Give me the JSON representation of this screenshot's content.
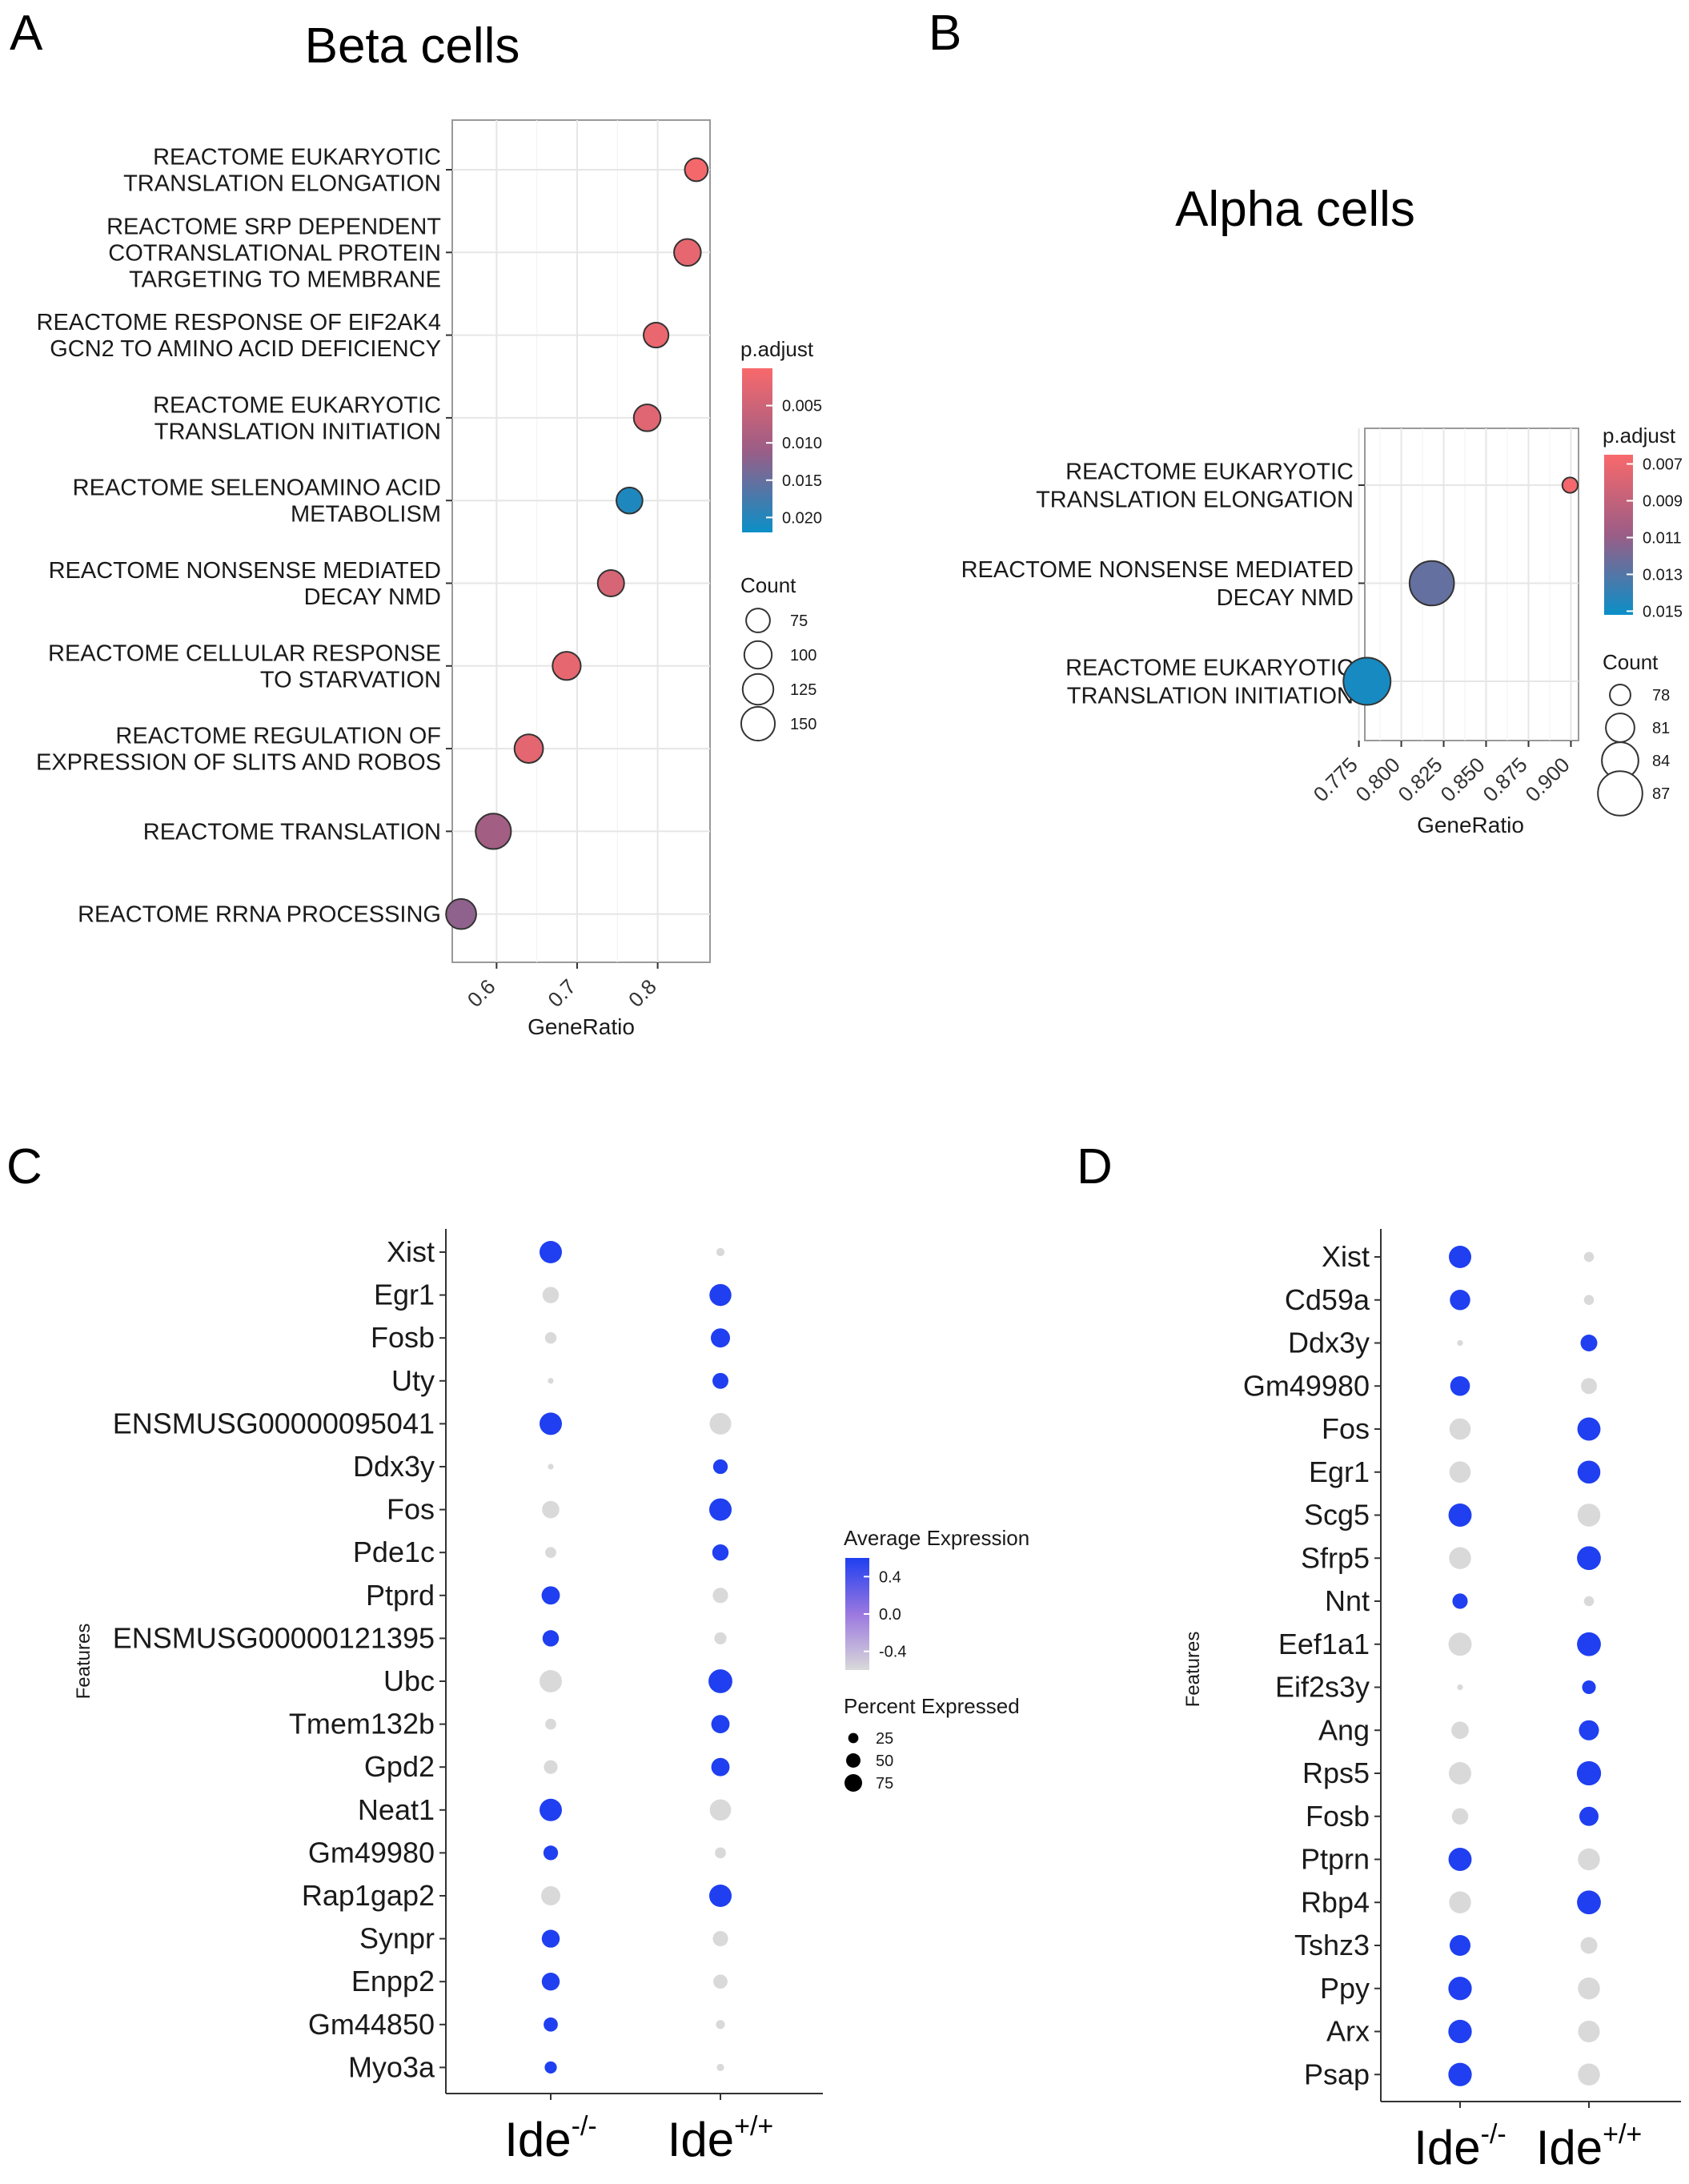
{
  "panels": {
    "A": {
      "label": "A",
      "title": "Beta cells"
    },
    "B": {
      "label": "B",
      "title": "Alpha cells"
    },
    "C": {
      "label": "C"
    },
    "D": {
      "label": "D"
    }
  },
  "chart_data": [
    {
      "panel": "A",
      "type": "scatter",
      "title": "Beta cells",
      "xlabel": "GeneRatio",
      "ylabel": "",
      "xlim": [
        0.545,
        0.865
      ],
      "xticks": [
        0.6,
        0.7,
        0.8
      ],
      "tick_labels": [
        "0.6",
        "0.7",
        "0.8"
      ],
      "grid": true,
      "categories": [
        [
          "REACTOME EUKARYOTIC",
          "TRANSLATION ELONGATION"
        ],
        [
          "REACTOME SRP DEPENDENT",
          "COTRANSLATIONAL PROTEIN",
          "TARGETING TO MEMBRANE"
        ],
        [
          "REACTOME RESPONSE OF EIF2AK4",
          "GCN2 TO AMINO ACID DEFICIENCY"
        ],
        [
          "REACTOME EUKARYOTIC",
          "TRANSLATION INITIATION"
        ],
        [
          "REACTOME SELENOAMINO ACID",
          "METABOLISM"
        ],
        [
          "REACTOME NONSENSE MEDIATED",
          "DECAY NMD"
        ],
        [
          "REACTOME CELLULAR RESPONSE",
          "TO STARVATION"
        ],
        [
          "REACTOME REGULATION OF",
          "EXPRESSION OF SLITS AND ROBOS"
        ],
        [
          "REACTOME TRANSLATION"
        ],
        [
          "REACTOME RRNA PROCESSING"
        ]
      ],
      "gene_ratio": [
        0.848,
        0.837,
        0.798,
        0.787,
        0.765,
        0.742,
        0.687,
        0.64,
        0.596,
        0.556
      ],
      "p_adjust": [
        0.0005,
        0.002,
        0.0015,
        0.003,
        0.0205,
        0.004,
        0.002,
        0.0025,
        0.01,
        0.012
      ],
      "count": [
        70,
        95,
        82,
        95,
        90,
        92,
        105,
        108,
        165,
        120
      ],
      "color_legend": {
        "title": "p.adjust",
        "range": [
          0.0,
          0.022
        ],
        "ticks": [
          "0.005",
          "0.010",
          "0.015",
          "0.020"
        ],
        "tick_values": [
          0.005,
          0.01,
          0.015,
          0.02
        ],
        "low_color": "#f8696b",
        "high_color": "#0a8fc7"
      },
      "size_legend": {
        "title": "Count",
        "values": [
          75,
          100,
          125,
          150
        ],
        "labels": [
          "75",
          "100",
          "125",
          "150"
        ]
      },
      "legend_position": "right"
    },
    {
      "panel": "B",
      "type": "scatter",
      "title": "Alpha cells",
      "xlabel": "GeneRatio",
      "ylabel": "",
      "xlim": [
        0.7785,
        0.9045
      ],
      "xticks": [
        0.775,
        0.8,
        0.825,
        0.85,
        0.875,
        0.9
      ],
      "tick_labels": [
        "0.775",
        "0.800",
        "0.825",
        "0.850",
        "0.875",
        "0.900"
      ],
      "grid": true,
      "categories": [
        [
          "REACTOME EUKARYOTIC",
          "TRANSLATION ELONGATION"
        ],
        [
          "REACTOME NONSENSE MEDIATED",
          "DECAY NMD"
        ],
        [
          "REACTOME EUKARYOTIC",
          "TRANSLATION INITIATION"
        ]
      ],
      "gene_ratio": [
        0.8995,
        0.818,
        0.7798
      ],
      "p_adjust": [
        0.0068,
        0.0125,
        0.0148
      ],
      "count": [
        76,
        87,
        88
      ],
      "color_legend": {
        "title": "p.adjust",
        "range": [
          0.0065,
          0.0152
        ],
        "ticks": [
          "0.007",
          "0.009",
          "0.011",
          "0.013",
          "0.015"
        ],
        "tick_values": [
          0.007,
          0.009,
          0.011,
          0.013,
          0.015
        ],
        "low_color": "#f8696b",
        "high_color": "#0a8fc7"
      },
      "size_legend": {
        "title": "Count",
        "values": [
          78,
          81,
          84,
          87
        ],
        "labels": [
          "78",
          "81",
          "84",
          "87"
        ]
      },
      "legend_position": "right"
    },
    {
      "panel": "C",
      "type": "scatter",
      "ylabel": "Features",
      "groups": [
        {
          "main": "Ide",
          "sup": "-/-"
        },
        {
          "main": "Ide",
          "sup": "+/+"
        }
      ],
      "features": [
        "Xist",
        "Egr1",
        "Fosb",
        "Uty",
        "ENSMUSG00000095041",
        "Ddx3y",
        "Fos",
        "Pde1c",
        "Ptprd",
        "ENSMUSG00000121395",
        "Ubc",
        "Tmem132b",
        "Gpd2",
        "Neat1",
        "Gm49980",
        "Rap1gap2",
        "Synpr",
        "Enpp2",
        "Gm44850",
        "Myo3a"
      ],
      "avg_expression": {
        "ko": [
          0.6,
          -0.6,
          -0.6,
          -0.6,
          0.6,
          -0.6,
          -0.6,
          -0.6,
          0.6,
          0.6,
          -0.6,
          -0.6,
          -0.6,
          0.6,
          0.6,
          -0.6,
          0.6,
          0.6,
          0.6,
          0.6
        ],
        "wt": [
          -0.6,
          0.6,
          0.6,
          0.6,
          -0.6,
          0.6,
          0.6,
          0.6,
          -0.6,
          -0.6,
          0.6,
          0.6,
          0.6,
          -0.6,
          -0.6,
          0.6,
          -0.6,
          -0.6,
          -0.6,
          -0.6
        ]
      },
      "pct_expressed": {
        "ko": [
          75,
          40,
          20,
          5,
          75,
          5,
          45,
          18,
          50,
          40,
          75,
          18,
          28,
          75,
          32,
          55,
          48,
          48,
          30,
          22
        ],
        "wt": [
          10,
          72,
          55,
          38,
          70,
          32,
          75,
          40,
          35,
          22,
          85,
          50,
          50,
          68,
          18,
          75,
          35,
          30,
          12,
          8
        ]
      },
      "color_legend": {
        "title": "Average Expression",
        "range": [
          -0.6,
          0.6
        ],
        "ticks": [
          "0.4",
          "0.0",
          "-0.4"
        ],
        "tick_values": [
          0.4,
          0.0,
          -0.4
        ],
        "low_color": "#d9d9d9",
        "high_color": "#1f3ff0"
      },
      "size_legend": {
        "title": "Percent Expressed",
        "values": [
          25,
          50,
          75
        ],
        "labels": [
          "25",
          "50",
          "75"
        ]
      },
      "legend_position": "right"
    },
    {
      "panel": "D",
      "type": "scatter",
      "ylabel": "Features",
      "groups": [
        {
          "main": "Ide",
          "sup": "-/-"
        },
        {
          "main": "Ide",
          "sup": "+/+"
        }
      ],
      "features": [
        "Xist",
        "Cd59a",
        "Ddx3y",
        "Gm49980",
        "Fos",
        "Egr1",
        "Scg5",
        "Sfrp5",
        "Nnt",
        "Eef1a1",
        "Eif2s3y",
        "Ang",
        "Rps5",
        "Fosb",
        "Ptprn",
        "Rbp4",
        "Tshz3",
        "Ppy",
        "Arx",
        "Psap"
      ],
      "avg_expression": {
        "ko": [
          0.6,
          0.6,
          -0.6,
          0.6,
          -0.6,
          -0.6,
          0.6,
          -0.6,
          0.6,
          -0.6,
          -0.6,
          -0.6,
          -0.6,
          -0.6,
          0.6,
          -0.6,
          0.6,
          0.6,
          0.6,
          0.6
        ],
        "wt": [
          -0.6,
          -0.6,
          0.6,
          -0.6,
          0.6,
          0.6,
          -0.6,
          0.6,
          -0.6,
          0.6,
          0.6,
          0.6,
          0.6,
          0.6,
          -0.6,
          0.6,
          -0.6,
          -0.6,
          -0.6,
          -0.6
        ]
      },
      "pct_expressed": {
        "ko": [
          75,
          62,
          5,
          58,
          68,
          68,
          80,
          72,
          35,
          80,
          5,
          45,
          75,
          40,
          80,
          72,
          65,
          82,
          82,
          82
        ],
        "wt": [
          15,
          15,
          42,
          38,
          80,
          78,
          78,
          85,
          15,
          85,
          28,
          60,
          88,
          55,
          72,
          85,
          42,
          72,
          70,
          72
        ]
      },
      "color_legend": null,
      "size_legend": null
    }
  ]
}
